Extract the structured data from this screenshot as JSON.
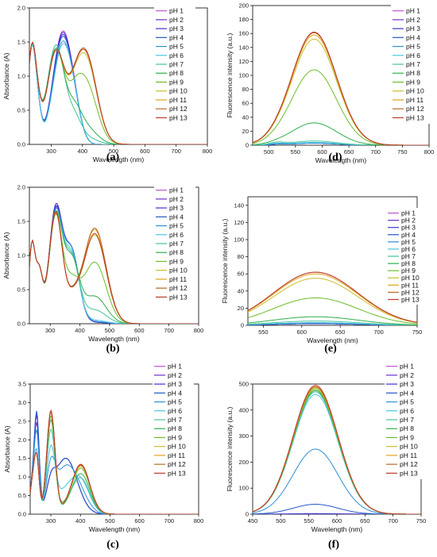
{
  "series_colors": [
    "#c055d8",
    "#6b2fd0",
    "#3a34d6",
    "#2155c8",
    "#2c8fd6",
    "#47c6e0",
    "#45c29a",
    "#2fae4b",
    "#6cbd2a",
    "#c9bd2b",
    "#e0a21c",
    "#b46a25",
    "#c0392b"
  ],
  "legend_labels": [
    "pH 1",
    "pH 2",
    "pH 3",
    "pH 4",
    "pH 5",
    "pH 6",
    "pH 7",
    "pH 8",
    "pH 9",
    "pH 10",
    "pH 11",
    "pH 12",
    "pH 13"
  ],
  "chart_data": [
    {
      "panel": "(a)",
      "type": "line",
      "ylabel": "Absorbance (A)",
      "xlabel": "Wavelength (nm)",
      "xlim": [
        230,
        800
      ],
      "ylim": [
        0,
        2.0
      ],
      "xticks": [
        300,
        400,
        500,
        600,
        700,
        800
      ],
      "yticks": [
        0.0,
        0.5,
        1.0,
        1.5,
        2.0
      ],
      "ytick_labels": [
        "0.0",
        "0.5",
        "1.0",
        "1.5",
        "2.0"
      ],
      "legend": "top-right",
      "bands": [
        [
          235,
          12
        ],
        [
          250,
          14
        ],
        [
          315,
          28
        ],
        [
          335,
          30
        ],
        [
          375,
          22
        ],
        [
          410,
          35
        ]
      ],
      "series": [
        {
          "name": "pH 1",
          "weights": [
            1.0,
            0.7,
            0,
            1.6,
            0.3,
            0
          ]
        },
        {
          "name": "pH 2",
          "weights": [
            1.0,
            0.7,
            0,
            1.58,
            0.3,
            0
          ]
        },
        {
          "name": "pH 3",
          "weights": [
            1.0,
            0.7,
            0,
            1.55,
            0.3,
            0
          ]
        },
        {
          "name": "pH 4",
          "weights": [
            1.0,
            0.7,
            0,
            1.52,
            0.3,
            0
          ]
        },
        {
          "name": "pH 5",
          "weights": [
            1.0,
            0.7,
            0,
            1.45,
            0.3,
            0
          ]
        },
        {
          "name": "pH 6",
          "weights": [
            1.0,
            0.7,
            0,
            1.4,
            0.35,
            0
          ]
        },
        {
          "name": "pH 7",
          "weights": [
            1.0,
            0.7,
            1.45,
            0,
            0.3,
            0.1
          ]
        },
        {
          "name": "pH 8",
          "weights": [
            1.0,
            0.7,
            1.4,
            0,
            0.35,
            0.25
          ]
        },
        {
          "name": "pH 9",
          "weights": [
            1.0,
            0.7,
            1.35,
            0,
            0.3,
            0.9
          ]
        },
        {
          "name": "pH 10",
          "weights": [
            1.0,
            0.7,
            1.35,
            0,
            0.25,
            1.25
          ]
        },
        {
          "name": "pH 11",
          "weights": [
            1.0,
            0.7,
            1.35,
            0,
            0.25,
            1.3
          ]
        },
        {
          "name": "pH 12",
          "weights": [
            1.0,
            0.7,
            1.35,
            0,
            0.25,
            1.32
          ]
        },
        {
          "name": "pH 13",
          "weights": [
            1.0,
            0.7,
            1.35,
            0,
            0.25,
            1.3
          ]
        }
      ]
    },
    {
      "panel": "(d)",
      "type": "line",
      "ylabel": "Fluorescence intensity (a.u.)",
      "xlabel": "Wavelength (nm)",
      "xlim": [
        470,
        800
      ],
      "ylim": [
        0,
        200
      ],
      "xticks": [
        500,
        550,
        600,
        650,
        700,
        750,
        800
      ],
      "yticks": [
        0,
        20,
        40,
        60,
        80,
        100,
        120,
        140,
        160,
        180,
        200
      ],
      "ytick_labels": [
        "0",
        "20",
        "40",
        "60",
        "80",
        "100",
        "120",
        "140",
        "160",
        "180",
        "200"
      ],
      "legend": "top-right",
      "bands": [
        [
          585,
          42
        ],
        [
          515,
          15
        ]
      ],
      "series": [
        {
          "name": "pH 1",
          "weights": [
            3,
            1
          ]
        },
        {
          "name": "pH 2",
          "weights": [
            3,
            1
          ]
        },
        {
          "name": "pH 3",
          "weights": [
            3,
            1
          ]
        },
        {
          "name": "pH 4",
          "weights": [
            3,
            1
          ]
        },
        {
          "name": "pH 5",
          "weights": [
            3,
            1
          ]
        },
        {
          "name": "pH 6",
          "weights": [
            4,
            2
          ]
        },
        {
          "name": "pH 7",
          "weights": [
            6,
            3
          ]
        },
        {
          "name": "pH 8",
          "weights": [
            32,
            1
          ]
        },
        {
          "name": "pH 9",
          "weights": [
            108,
            1
          ]
        },
        {
          "name": "pH 10",
          "weights": [
            152,
            1
          ]
        },
        {
          "name": "pH 11",
          "weights": [
            158,
            1
          ]
        },
        {
          "name": "pH 12",
          "weights": [
            161,
            1
          ]
        },
        {
          "name": "pH 13",
          "weights": [
            162,
            1
          ]
        }
      ]
    },
    {
      "panel": "(b)",
      "type": "line",
      "ylabel": "Absorbance (A)",
      "xlabel": "Wavelength (nm)",
      "xlim": [
        230,
        800
      ],
      "ylim": [
        0,
        2.0
      ],
      "xticks": [
        300,
        400,
        500,
        600,
        700,
        800
      ],
      "yticks": [
        0.0,
        0.5,
        1.0,
        1.5,
        2.0
      ],
      "ytick_labels": [
        "0.0",
        "0.5",
        "1.0",
        "1.5",
        "2.0"
      ],
      "legend": "top-right",
      "bands": [
        [
          238,
          10
        ],
        [
          262,
          12
        ],
        [
          318,
          22
        ],
        [
          372,
          25
        ],
        [
          450,
          38
        ]
      ],
      "series": [
        {
          "name": "pH 1",
          "weights": [
            1.1,
            0.75,
            1.65,
            1.05,
            0.02
          ]
        },
        {
          "name": "pH 2",
          "weights": [
            1.1,
            0.75,
            1.65,
            1.05,
            0.02
          ]
        },
        {
          "name": "pH 3",
          "weights": [
            1.1,
            0.75,
            1.62,
            1.05,
            0.02
          ]
        },
        {
          "name": "pH 4",
          "weights": [
            1.1,
            0.75,
            1.6,
            1.05,
            0.03
          ]
        },
        {
          "name": "pH 5",
          "weights": [
            1.1,
            0.75,
            1.58,
            1.05,
            0.03
          ]
        },
        {
          "name": "pH 6",
          "weights": [
            1.1,
            0.75,
            1.55,
            1.0,
            0.05
          ]
        },
        {
          "name": "pH 7",
          "weights": [
            1.1,
            0.75,
            1.55,
            0.95,
            0.2
          ]
        },
        {
          "name": "pH 8",
          "weights": [
            1.1,
            0.75,
            1.55,
            0.9,
            0.4
          ]
        },
        {
          "name": "pH 9",
          "weights": [
            1.1,
            0.75,
            1.55,
            0.55,
            0.9
          ]
        },
        {
          "name": "pH 10",
          "weights": [
            1.1,
            0.75,
            1.6,
            0.3,
            1.3
          ]
        },
        {
          "name": "pH 11",
          "weights": [
            1.1,
            0.75,
            1.62,
            0.3,
            1.38
          ]
        },
        {
          "name": "pH 12",
          "weights": [
            1.1,
            0.75,
            1.62,
            0.3,
            1.4
          ]
        },
        {
          "name": "pH 13",
          "weights": [
            1.1,
            0.75,
            1.6,
            0.3,
            1.32
          ]
        }
      ]
    },
    {
      "panel": "(e)",
      "type": "line",
      "ylabel": "Fluorescence intensity (a.u.)",
      "xlabel": "Wavelength (nm)",
      "xlim": [
        530,
        750
      ],
      "ylim": [
        0,
        150
      ],
      "xticks": [
        550,
        600,
        650,
        700,
        750
      ],
      "yticks": [
        0,
        20,
        40,
        60,
        80,
        100,
        120,
        140
      ],
      "ytick_labels": [
        "0",
        "20",
        "40",
        "60",
        "80",
        "100",
        "120",
        "140"
      ],
      "legend": "top-right",
      "bands": [
        [
          618,
          55
        ]
      ],
      "series": [
        {
          "name": "pH 1",
          "weights": [
            2
          ]
        },
        {
          "name": "pH 2",
          "weights": [
            2
          ]
        },
        {
          "name": "pH 3",
          "weights": [
            2
          ]
        },
        {
          "name": "pH 4",
          "weights": [
            2
          ]
        },
        {
          "name": "pH 5",
          "weights": [
            3
          ]
        },
        {
          "name": "pH 6",
          "weights": [
            3
          ]
        },
        {
          "name": "pH 7",
          "weights": [
            5
          ]
        },
        {
          "name": "pH 8",
          "weights": [
            10
          ]
        },
        {
          "name": "pH 9",
          "weights": [
            32
          ]
        },
        {
          "name": "pH 10",
          "weights": [
            55
          ]
        },
        {
          "name": "pH 11",
          "weights": [
            60
          ]
        },
        {
          "name": "pH 12",
          "weights": [
            62
          ]
        },
        {
          "name": "pH 13",
          "weights": [
            62
          ]
        }
      ]
    },
    {
      "panel": "(c)",
      "type": "line",
      "ylabel": "Absorbance (A)",
      "xlabel": "Wavelength (nm)",
      "xlim": [
        230,
        800
      ],
      "ylim": [
        0,
        3.5
      ],
      "xticks": [
        300,
        400,
        500,
        600,
        700,
        800
      ],
      "yticks": [
        0.0,
        0.5,
        1.0,
        1.5,
        2.0,
        2.5,
        3.0,
        3.5
      ],
      "ytick_labels": [
        "0.0",
        "0.5",
        "1.0",
        "1.5",
        "2.0",
        "2.5",
        "3.0",
        "3.5"
      ],
      "legend": "top-right",
      "bands": [
        [
          240,
          10
        ],
        [
          253,
          8
        ],
        [
          300,
          14
        ],
        [
          350,
          38
        ],
        [
          402,
          30
        ]
      ],
      "series": [
        {
          "name": "pH 1",
          "weights": [
            0.9,
            1.3,
            2.7,
            0.1,
            1.3
          ]
        },
        {
          "name": "pH 2",
          "weights": [
            0.9,
            2.0,
            0.5,
            1.5,
            0.02
          ]
        },
        {
          "name": "pH 3",
          "weights": [
            0.9,
            2.2,
            0.5,
            1.5,
            0.02
          ]
        },
        {
          "name": "pH 4",
          "weights": [
            0.9,
            2.3,
            0.5,
            1.5,
            0.02
          ]
        },
        {
          "name": "pH 5",
          "weights": [
            0.9,
            1.8,
            1.0,
            1.25,
            0.3
          ]
        },
        {
          "name": "pH 6",
          "weights": [
            0.9,
            1.3,
            1.6,
            0.6,
            0.75
          ]
        },
        {
          "name": "pH 7",
          "weights": [
            0.9,
            1.2,
            2.2,
            0.2,
            0.9
          ]
        },
        {
          "name": "pH 8",
          "weights": [
            0.9,
            1.2,
            2.5,
            0.1,
            1.05
          ]
        },
        {
          "name": "pH 9",
          "weights": [
            0.9,
            1.2,
            2.6,
            0.1,
            1.2
          ]
        },
        {
          "name": "pH 10",
          "weights": [
            0.9,
            1.2,
            2.7,
            0.1,
            1.25
          ]
        },
        {
          "name": "pH 11",
          "weights": [
            0.9,
            1.2,
            2.7,
            0.1,
            1.28
          ]
        },
        {
          "name": "pH 12",
          "weights": [
            0.9,
            1.2,
            2.7,
            0.1,
            1.28
          ]
        },
        {
          "name": "pH 13",
          "weights": [
            0.9,
            1.2,
            2.75,
            0.1,
            1.3
          ]
        }
      ]
    },
    {
      "panel": "(f)",
      "type": "line",
      "ylabel": "Fluorescence intensity (a.u.)",
      "xlabel": "Wavelength (nm)",
      "xlim": [
        450,
        750
      ],
      "ylim": [
        0,
        500
      ],
      "xticks": [
        450,
        500,
        550,
        600,
        650,
        700,
        750
      ],
      "yticks": [
        0,
        100,
        200,
        300,
        400,
        500
      ],
      "ytick_labels": [
        "0",
        "100",
        "200",
        "300",
        "400",
        "500"
      ],
      "legend": "top-right",
      "bands": [
        [
          562,
          40
        ]
      ],
      "series": [
        {
          "name": "pH 1",
          "weights": [
            1
          ]
        },
        {
          "name": "pH 2",
          "weights": [
            1
          ]
        },
        {
          "name": "pH 3",
          "weights": [
            2
          ]
        },
        {
          "name": "pH 4",
          "weights": [
            38
          ]
        },
        {
          "name": "pH 5",
          "weights": [
            250
          ]
        },
        {
          "name": "pH 6",
          "weights": [
            460
          ]
        },
        {
          "name": "pH 7",
          "weights": [
            470
          ]
        },
        {
          "name": "pH 8",
          "weights": [
            475
          ]
        },
        {
          "name": "pH 9",
          "weights": [
            480
          ]
        },
        {
          "name": "pH 10",
          "weights": [
            485
          ]
        },
        {
          "name": "pH 11",
          "weights": [
            488
          ]
        },
        {
          "name": "pH 12",
          "weights": [
            490
          ]
        },
        {
          "name": "pH 13",
          "weights": [
            495
          ]
        }
      ]
    }
  ]
}
